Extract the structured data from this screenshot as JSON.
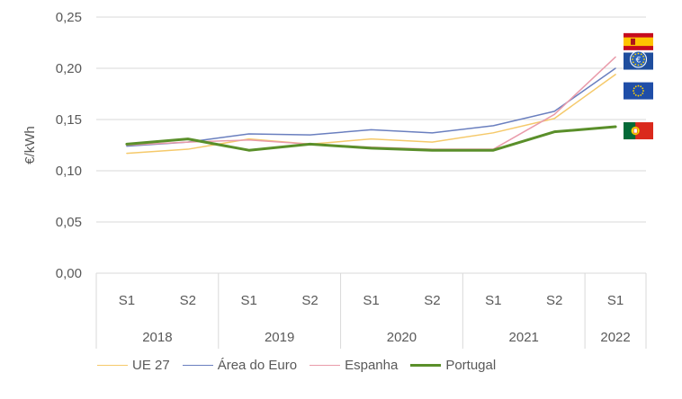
{
  "chart_data": {
    "type": "line",
    "ylabel": "€/kWh",
    "ylim": [
      0,
      0.25
    ],
    "yticks": [
      "0,00",
      "0,05",
      "0,10",
      "0,15",
      "0,20",
      "0,25"
    ],
    "grid": true,
    "legend_position": "bottom",
    "categories": [
      "S1",
      "S2",
      "S1",
      "S2",
      "S1",
      "S2",
      "S1",
      "S2",
      "S1"
    ],
    "years": [
      {
        "label": "2018",
        "span": 2
      },
      {
        "label": "2019",
        "span": 2
      },
      {
        "label": "2020",
        "span": 2
      },
      {
        "label": "2021",
        "span": 2
      },
      {
        "label": "2022",
        "span": 1
      }
    ],
    "series": [
      {
        "name": "UE 27",
        "color": "#F5C96A",
        "width": 1.5,
        "values": [
          0.117,
          0.121,
          0.131,
          0.126,
          0.131,
          0.128,
          0.137,
          0.151,
          0.194
        ]
      },
      {
        "name": "Área do Euro",
        "color": "#6A7FBF",
        "width": 1.5,
        "values": [
          0.124,
          0.128,
          0.136,
          0.135,
          0.14,
          0.137,
          0.144,
          0.158,
          0.2
        ]
      },
      {
        "name": "Espanha",
        "color": "#E99BAA",
        "width": 1.5,
        "values": [
          0.125,
          0.128,
          0.13,
          0.126,
          0.123,
          0.121,
          0.121,
          0.155,
          0.211
        ]
      },
      {
        "name": "Portugal",
        "color": "#5A8F2A",
        "width": 3,
        "values": [
          0.126,
          0.131,
          0.12,
          0.126,
          0.122,
          0.12,
          0.12,
          0.138,
          0.143
        ]
      }
    ],
    "flags": [
      {
        "icon": "spain-flag-icon",
        "value": 0.226
      },
      {
        "icon": "euro-area-flag-icon",
        "value": 0.207
      },
      {
        "icon": "eu-flag-icon",
        "value": 0.178
      },
      {
        "icon": "portugal-flag-icon",
        "value": 0.139
      }
    ]
  }
}
